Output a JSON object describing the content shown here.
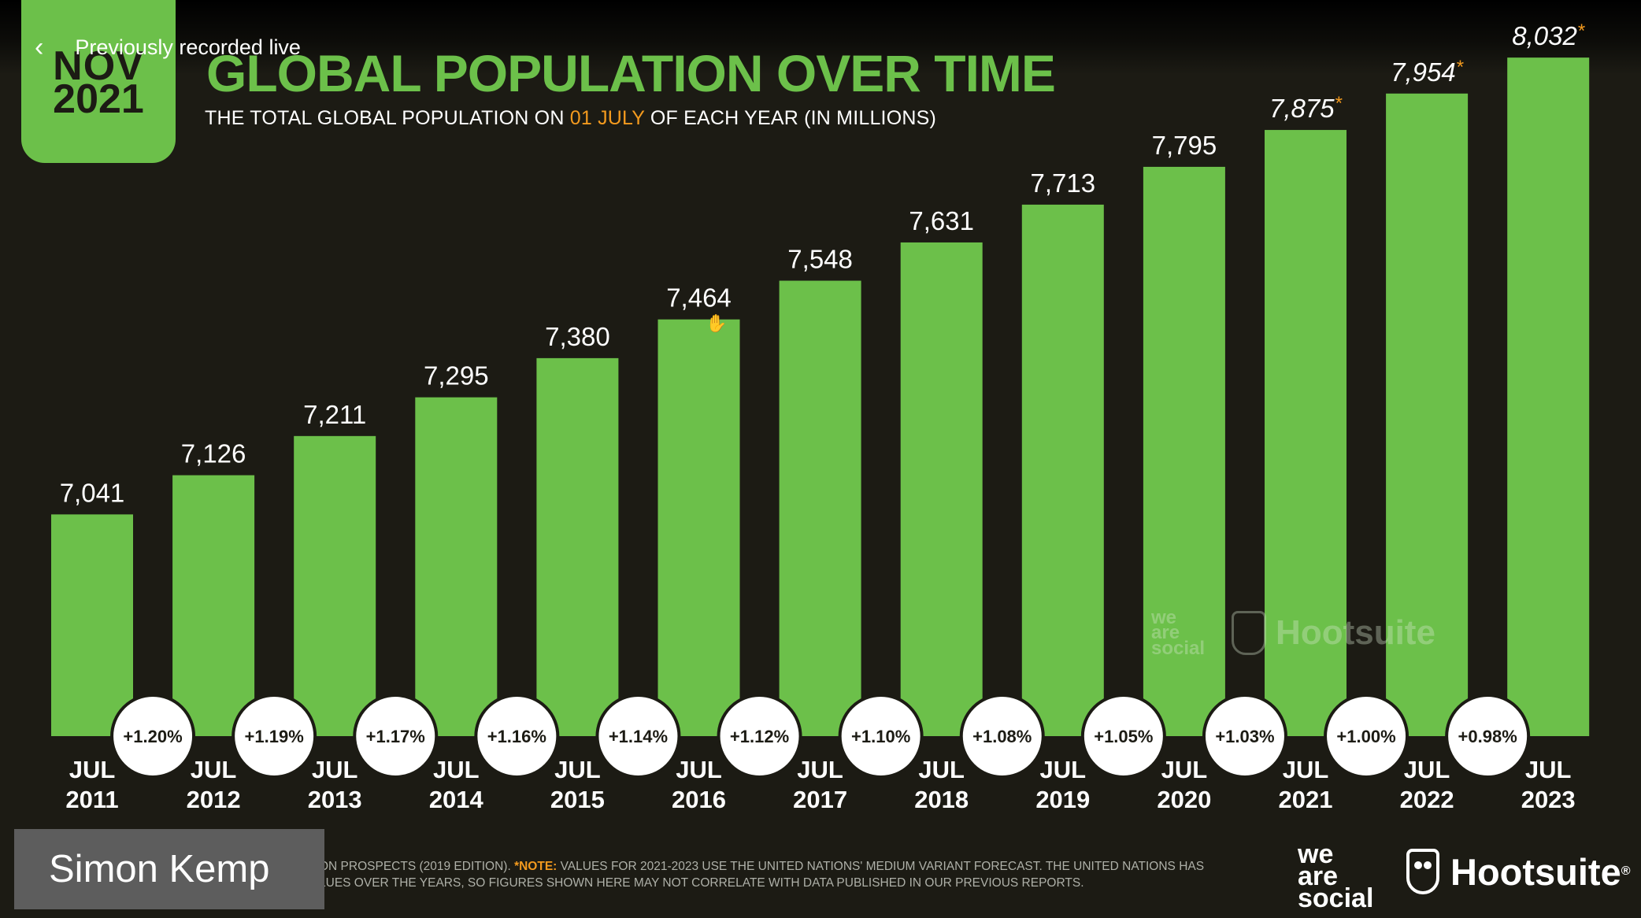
{
  "player": {
    "back_label": "Previously recorded live",
    "presenter_name": "Simon Kemp"
  },
  "slide": {
    "date_month": "NOV",
    "date_year": "2021",
    "title": "GLOBAL POPULATION OVER TIME",
    "subtitle_before": "THE TOTAL GLOBAL POPULATION ON ",
    "subtitle_highlight": "01 JULY",
    "subtitle_after": " OF EACH YEAR (IN MILLIONS)",
    "footnote_line1_prefix": "ON PROSPECTS (2019 EDITION). ",
    "footnote_note_label": "*NOTE:",
    "footnote_line1_rest": " VALUES FOR 2021-2023 USE THE UNITED NATIONS' MEDIUM VARIANT FORECAST. THE UNITED NATIONS HAS",
    "footnote_line2": "LUES OVER THE YEARS, SO FIGURES SHOWN HERE MAY NOT CORRELATE WITH DATA PUBLISHED IN OUR PREVIOUS REPORTS.",
    "logo_we_are_social": [
      "we",
      "are",
      "social"
    ],
    "logo_hootsuite": "Hootsuite",
    "logo_hootsuite_mark": "®"
  },
  "colors": {
    "brand_green": "#6cc04a",
    "accent_orange": "#f39a1e",
    "background": "#1c1b14"
  },
  "chart_data": {
    "type": "bar",
    "title": "GLOBAL POPULATION OVER TIME",
    "categories": [
      [
        "JUL",
        "2011"
      ],
      [
        "JUL",
        "2012"
      ],
      [
        "JUL",
        "2013"
      ],
      [
        "JUL",
        "2014"
      ],
      [
        "JUL",
        "2015"
      ],
      [
        "JUL",
        "2016"
      ],
      [
        "JUL",
        "2017"
      ],
      [
        "JUL",
        "2018"
      ],
      [
        "JUL",
        "2019"
      ],
      [
        "JUL",
        "2020"
      ],
      [
        "JUL",
        "2021"
      ],
      [
        "JUL",
        "2022"
      ],
      [
        "JUL",
        "2023"
      ]
    ],
    "values": [
      7041,
      7126,
      7211,
      7295,
      7380,
      7464,
      7548,
      7631,
      7713,
      7795,
      7875,
      7954,
      8032
    ],
    "value_labels": [
      "7,041",
      "7,126",
      "7,211",
      "7,295",
      "7,380",
      "7,464",
      "7,548",
      "7,631",
      "7,713",
      "7,795",
      "7,875",
      "7,954",
      "8,032"
    ],
    "forecast": [
      false,
      false,
      false,
      false,
      false,
      false,
      false,
      false,
      false,
      false,
      true,
      true,
      true
    ],
    "forecast_marker": "*",
    "growth_labels": [
      "+1.20%",
      "+1.19%",
      "+1.17%",
      "+1.16%",
      "+1.14%",
      "+1.12%",
      "+1.10%",
      "+1.08%",
      "+1.05%",
      "+1.03%",
      "+1.00%",
      "+0.98%"
    ],
    "grid": false,
    "legend": "none"
  }
}
